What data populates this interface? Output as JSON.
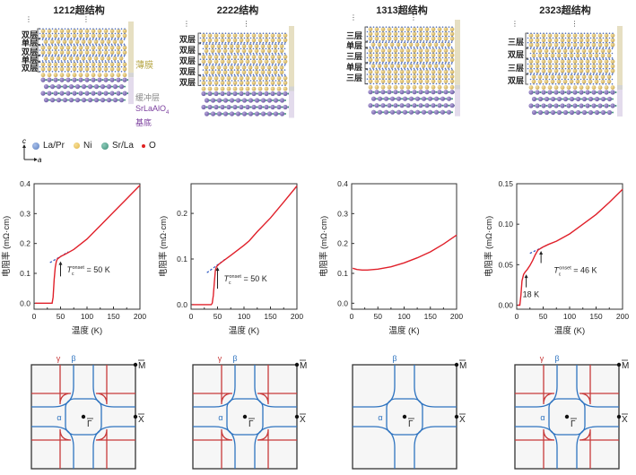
{
  "structures": [
    {
      "title": "1212超结构",
      "layers": [
        "双层",
        "单层",
        "双层",
        "单层",
        "双层"
      ]
    },
    {
      "title": "2222结构",
      "layers": [
        "双层",
        "双层",
        "双层",
        "双层",
        "双层"
      ]
    },
    {
      "title": "1313超结构",
      "layers": [
        "三层",
        "单层",
        "三层",
        "单层",
        "三层"
      ]
    },
    {
      "title": "2323超结构",
      "layers": [
        "三层",
        "双层",
        "三层",
        "双层"
      ]
    }
  ],
  "side_labels": {
    "film": "薄膜",
    "buffer": "缓冲层",
    "substrate_line1": "SrLaAlO",
    "substrate_sub": "4",
    "substrate_line2": "基底"
  },
  "axes_hint": {
    "c": "c",
    "a": "a"
  },
  "legend": [
    {
      "label": "La/Pr",
      "color": "#5b7fbf"
    },
    {
      "label": "Ni",
      "color": "#e2b64a"
    },
    {
      "label": "Sr/La",
      "color": "#3f8f7a"
    },
    {
      "label": "O",
      "color": "#e02020"
    }
  ],
  "colors": {
    "film_bar": "#e6dfc2",
    "buffer_bar": "#d4d4d4",
    "substrate_bar": "#e3dbec",
    "film_text": "#b8a84a",
    "buffer_text": "#888888",
    "substrate_text": "#7b3f9e",
    "curve": "#e0202a",
    "fit": "#2a55c0",
    "fs_alpha_beta": "#2f74c0",
    "fs_gamma": "#c83a3a"
  },
  "chart_data": [
    {
      "type": "line",
      "name": "1212",
      "xlabel": "温度 (K)",
      "ylabel": "电阻率 (mΩ·cm)",
      "xlim": [
        0,
        200
      ],
      "ylim": [
        -0.02,
        0.4
      ],
      "xticks": [
        0,
        50,
        100,
        150,
        200
      ],
      "yticks": [
        0.0,
        0.1,
        0.2,
        0.3,
        0.4
      ],
      "ytick_labels": [
        "0.0",
        "0.1",
        "0.2",
        "0.3",
        "0.4"
      ],
      "series": [
        {
          "name": "resistivity",
          "x": [
            2,
            34,
            36,
            38,
            40,
            42,
            44,
            47,
            50,
            60,
            75,
            100,
            125,
            150,
            175,
            200
          ],
          "y": [
            0,
            0,
            0.02,
            0.08,
            0.12,
            0.14,
            0.148,
            0.152,
            0.156,
            0.165,
            0.18,
            0.215,
            0.26,
            0.305,
            0.35,
            0.395
          ]
        }
      ],
      "fit": {
        "x": [
          30,
          65
        ],
        "y": [
          0.136,
          0.172
        ]
      },
      "annotations": [
        {
          "text_main": "T",
          "text_sub": "c",
          "text_sup": "onset",
          "text_rest": " = 50 K",
          "x": 50,
          "y_arrow_from": 0.09,
          "y_arrow_to": 0.14
        }
      ]
    },
    {
      "type": "line",
      "name": "2222",
      "xlabel": "温度 (K)",
      "ylabel": "电阻率 (mΩ·cm)",
      "xlim": [
        0,
        200
      ],
      "ylim": [
        -0.01,
        0.265
      ],
      "xticks": [
        0,
        50,
        100,
        150,
        200
      ],
      "yticks": [
        0.0,
        0.1,
        0.2
      ],
      "ytick_labels": [
        "0.0",
        "0.1",
        "0.2"
      ],
      "series": [
        {
          "name": "resistivity",
          "x": [
            2,
            38,
            40,
            42,
            44,
            46,
            48,
            52,
            60,
            75,
            100,
            110,
            125,
            150,
            175,
            200
          ],
          "y": [
            0,
            0,
            0.003,
            0.02,
            0.05,
            0.075,
            0.083,
            0.088,
            0.095,
            0.108,
            0.13,
            0.14,
            0.16,
            0.19,
            0.225,
            0.26
          ]
        }
      ],
      "fit": {
        "x": [
          30,
          65
        ],
        "y": [
          0.07,
          0.1
        ]
      },
      "annotations": [
        {
          "text_main": "T",
          "text_sub": "c",
          "text_sup": "onset",
          "text_rest": " = 50 K",
          "x": 50,
          "y_arrow_from": 0.035,
          "y_arrow_to": 0.082
        }
      ]
    },
    {
      "type": "line",
      "name": "1313",
      "xlabel": "温度 (K)",
      "ylabel": "电阻率 (mΩ·cm)",
      "xlim": [
        0,
        200
      ],
      "ylim": [
        -0.02,
        0.4
      ],
      "xticks": [
        0,
        50,
        100,
        150,
        200
      ],
      "yticks": [
        0.0,
        0.1,
        0.2,
        0.3,
        0.4
      ],
      "ytick_labels": [
        "0.0",
        "0.1",
        "0.2",
        "0.3",
        "0.4"
      ],
      "series": [
        {
          "name": "resistivity",
          "x": [
            2,
            10,
            20,
            30,
            50,
            75,
            100,
            125,
            150,
            175,
            200
          ],
          "y": [
            0.117,
            0.113,
            0.111,
            0.111,
            0.114,
            0.122,
            0.135,
            0.152,
            0.172,
            0.198,
            0.228
          ]
        }
      ],
      "annotations": []
    },
    {
      "type": "line",
      "name": "2323",
      "xlabel": "温度 (K)",
      "ylabel": "电阻率 (mΩ·cm)",
      "xlim": [
        0,
        200
      ],
      "ylim": [
        -0.005,
        0.15
      ],
      "xticks": [
        0,
        50,
        100,
        150,
        200
      ],
      "yticks": [
        0.0,
        0.05,
        0.1,
        0.15
      ],
      "ytick_labels": [
        "0.00",
        "0.05",
        "0.10",
        "0.15"
      ],
      "series": [
        {
          "name": "resistivity",
          "x": [
            2,
            6,
            8,
            10,
            13,
            16,
            20,
            25,
            30,
            35,
            40,
            45,
            50,
            60,
            75,
            100,
            125,
            150,
            175,
            200
          ],
          "y": [
            0,
            0,
            0.012,
            0.03,
            0.038,
            0.041,
            0.044,
            0.049,
            0.055,
            0.062,
            0.068,
            0.07,
            0.072,
            0.075,
            0.079,
            0.088,
            0.1,
            0.112,
            0.127,
            0.143
          ]
        }
      ],
      "fit": {
        "x": [
          25,
          60
        ],
        "y": [
          0.064,
          0.075
        ]
      },
      "annotations": [
        {
          "text_main": "T",
          "text_sub": "c",
          "text_sup": "onset",
          "text_rest": " = 46 K",
          "x": 46,
          "y_arrow_from": 0.052,
          "y_arrow_to": 0.067,
          "label_x": 70,
          "label_y": 0.04
        },
        {
          "text_plain": "18 K",
          "x": 18,
          "y_arrow_from": 0.022,
          "y_arrow_to": 0.038
        }
      ]
    }
  ],
  "fermi_surfaces": [
    {
      "name": "1212",
      "bands": [
        "α",
        "β",
        "γ"
      ],
      "points": [
        "M",
        "X",
        "Γ"
      ]
    },
    {
      "name": "2222",
      "bands": [
        "α",
        "β",
        "γ"
      ],
      "points": [
        "M",
        "X",
        "Γ"
      ]
    },
    {
      "name": "1313",
      "bands": [
        "α",
        "β"
      ],
      "points": [
        "M",
        "X",
        "Γ"
      ]
    },
    {
      "name": "2323",
      "bands": [
        "α",
        "β",
        "γ"
      ],
      "points": [
        "M",
        "X",
        "Γ"
      ]
    }
  ]
}
